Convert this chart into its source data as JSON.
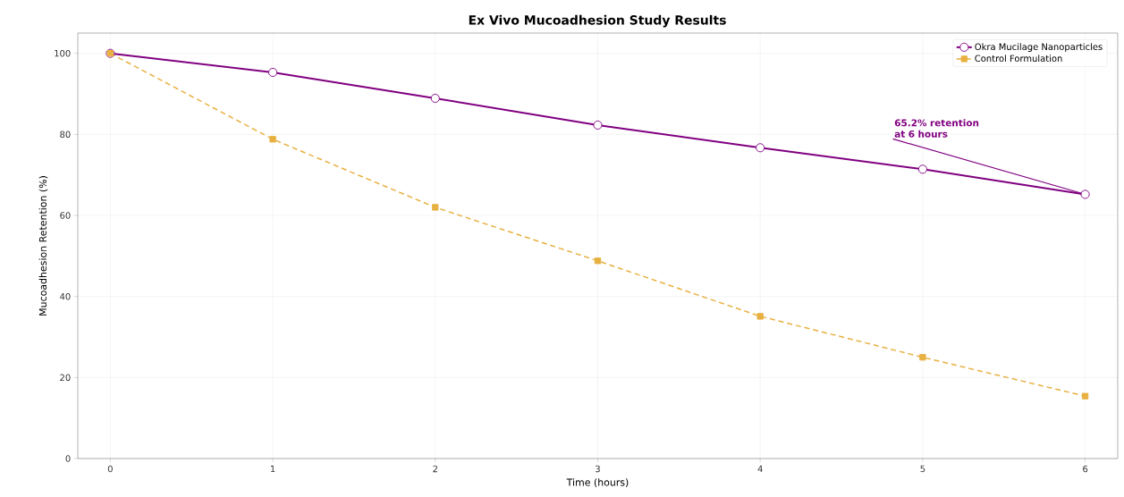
{
  "chart_data": {
    "type": "line",
    "title": "Ex Vivo Mucoadhesion Study Results",
    "xlabel": "Time (hours)",
    "ylabel": "Mucoadhesion Retention (%)",
    "x": [
      0,
      1,
      2,
      3,
      4,
      5,
      6
    ],
    "series": [
      {
        "name": "Okra Mucilage Nanoparticles",
        "color": "#800080",
        "values": [
          100,
          95.3,
          88.9,
          82.3,
          76.7,
          71.4,
          65.2
        ],
        "marker": "circle",
        "line_style": "solid"
      },
      {
        "name": "Control Formulation",
        "color": "#e8b040",
        "values": [
          100,
          78.8,
          62,
          48.8,
          35.1,
          25,
          15.4
        ],
        "marker": "square",
        "line_style": "dashed"
      }
    ],
    "xlim": [
      -0.2,
      6.2
    ],
    "ylim": [
      0,
      105
    ],
    "xticks": [
      0,
      1,
      2,
      3,
      4,
      5,
      6
    ],
    "yticks": [
      0,
      20,
      40,
      60,
      80,
      100
    ],
    "grid": true,
    "legend": "top right",
    "annotations": [
      {
        "text": "65.2% retention at 6 hours",
        "x": 6,
        "y": 65.2
      }
    ]
  }
}
